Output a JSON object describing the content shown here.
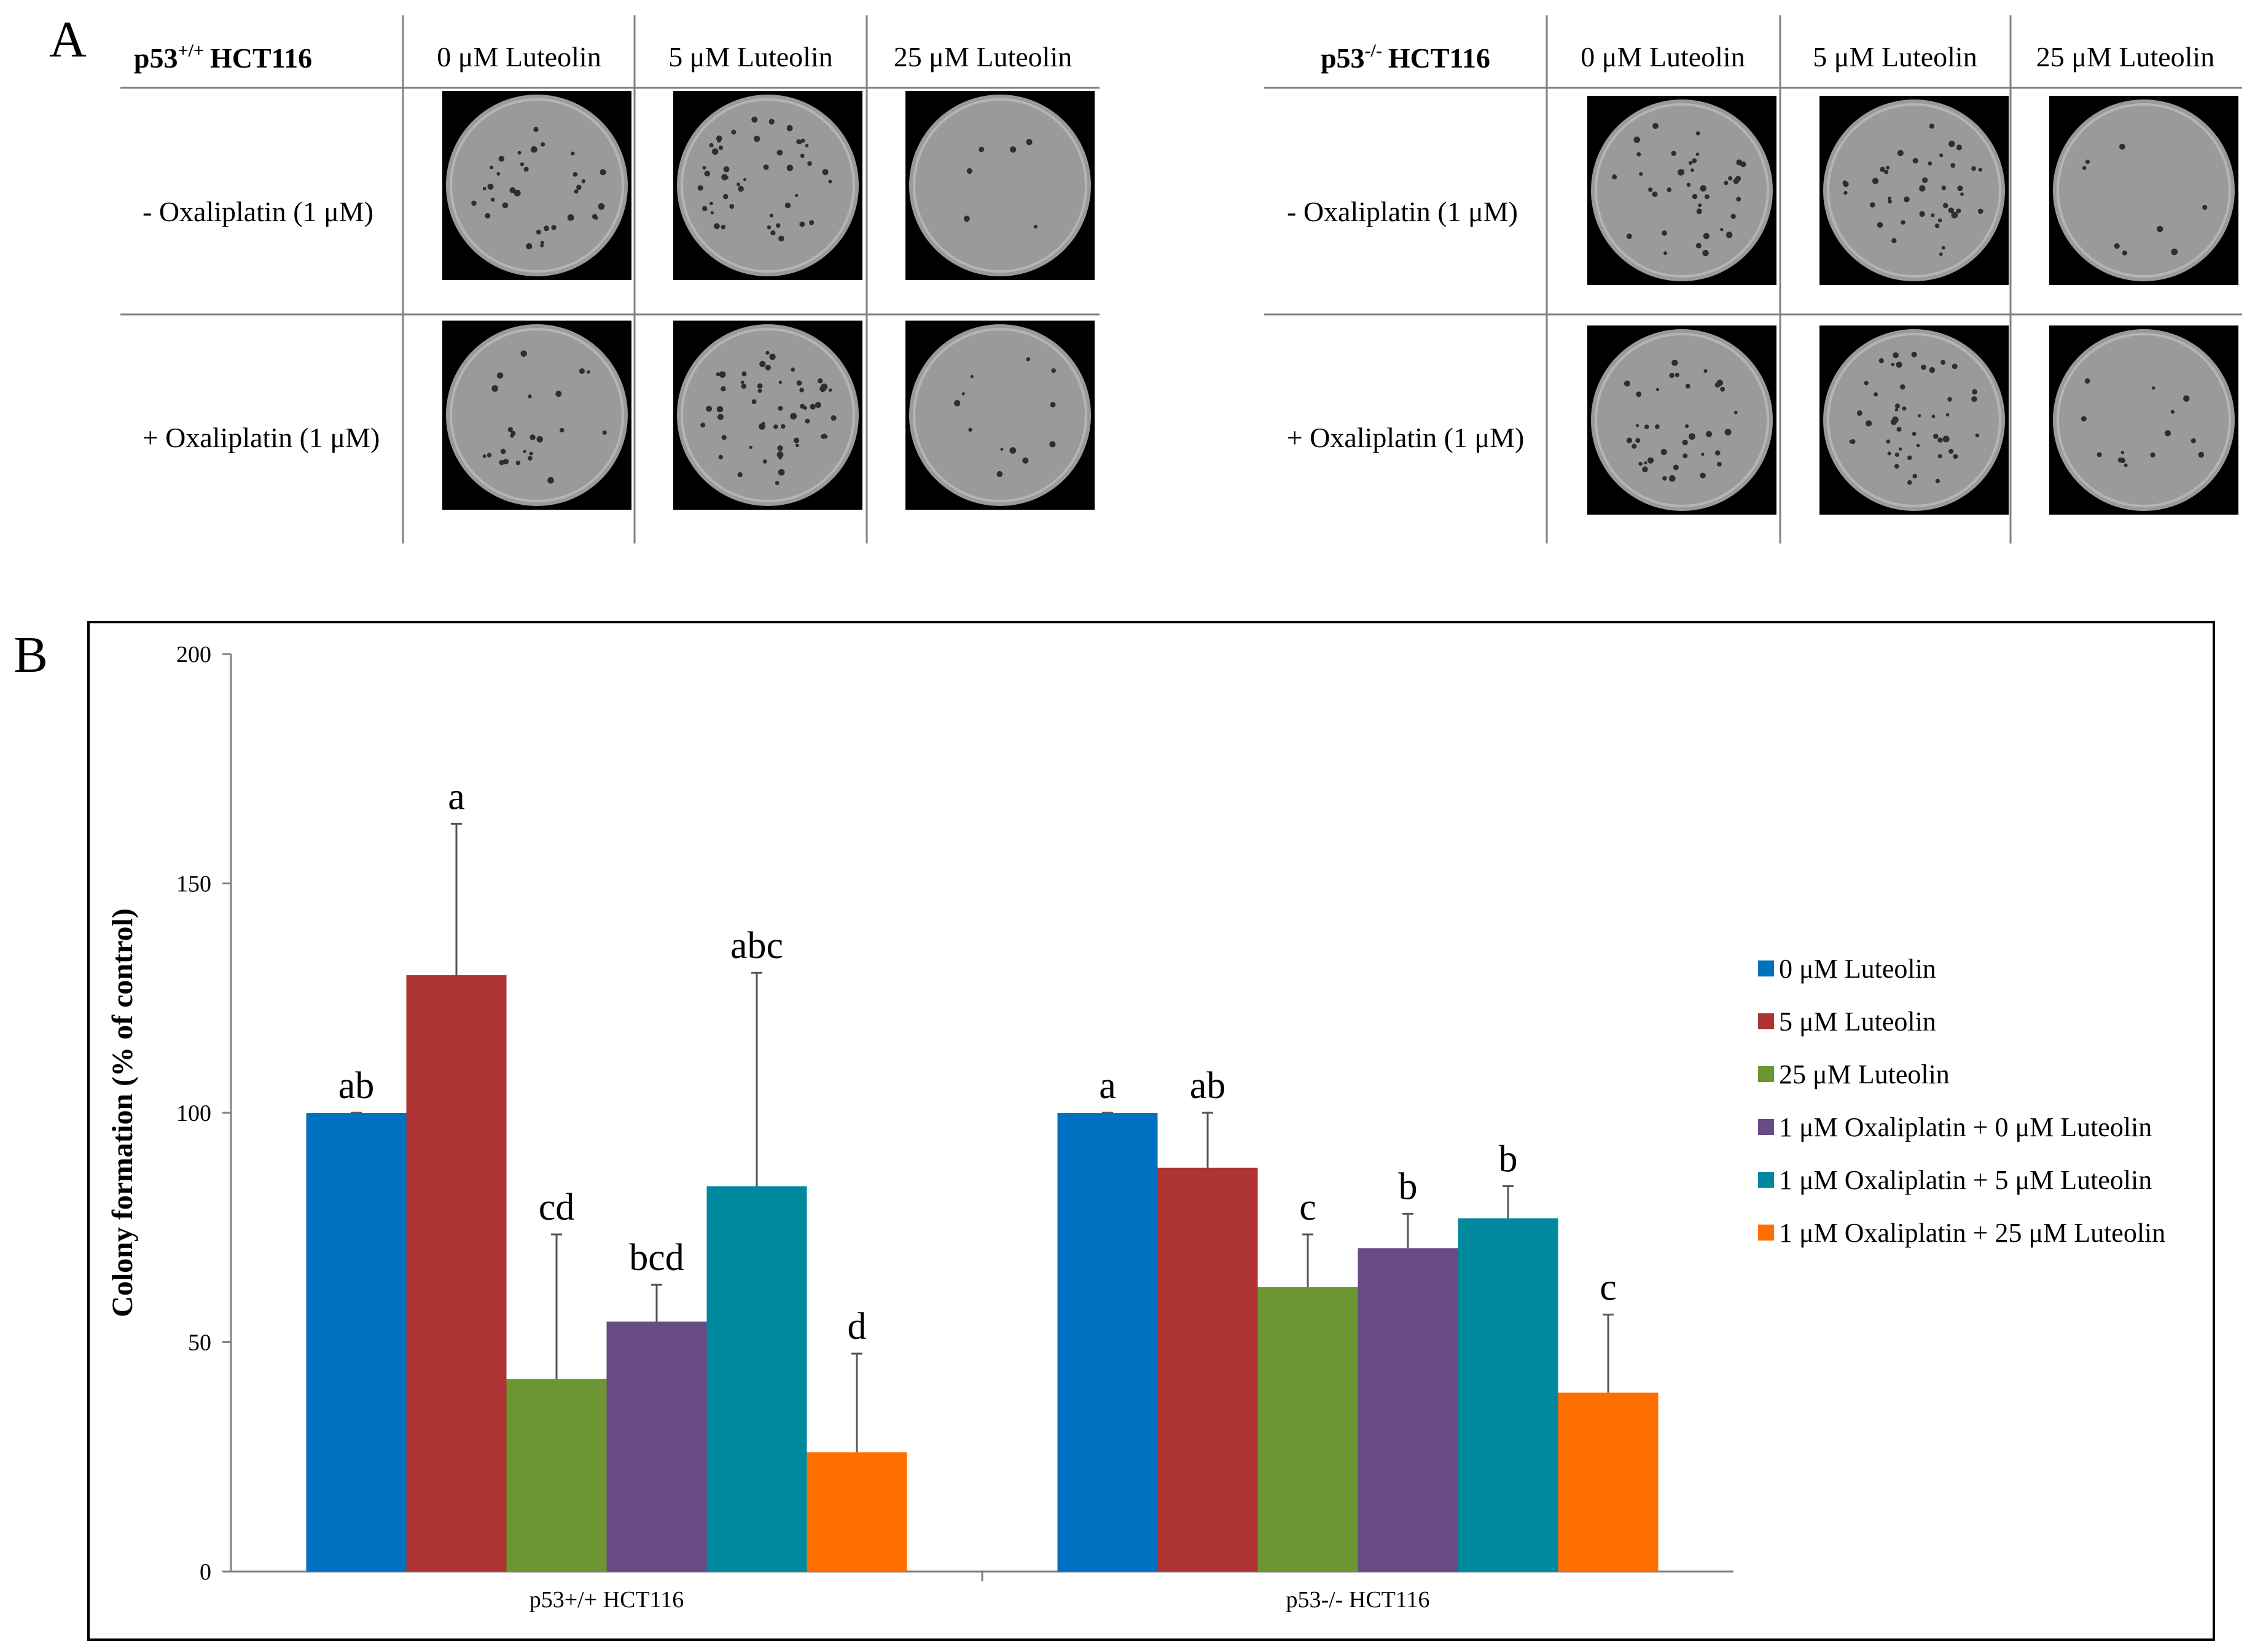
{
  "panel_a": {
    "label": "A",
    "groups": [
      {
        "title_prefix": "p53",
        "title_sup": "+/+",
        "title_suffix": "HCT116",
        "columns": [
          "0 μM Luteolin",
          "5 μM Luteolin",
          "25 μM Luteolin"
        ],
        "rows": [
          "- Oxaliplatin (1 μM)",
          "+ Oxaliplatin (1 μM)"
        ],
        "colony_counts": [
          [
            34,
            46,
            6
          ],
          [
            24,
            52,
            12
          ]
        ]
      },
      {
        "title_prefix": "p53",
        "title_sup": "-/-",
        "title_suffix": "HCT116",
        "columns": [
          "0 μM Luteolin",
          "5 μM Luteolin",
          "25 μM Luteolin"
        ],
        "rows": [
          "- Oxaliplatin (1 μM)",
          "+ Oxaliplatin (1 μM)"
        ],
        "colony_counts": [
          [
            38,
            40,
            8
          ],
          [
            36,
            46,
            14
          ]
        ]
      }
    ]
  },
  "chart_data": {
    "panel_label": "B",
    "type": "bar",
    "categories": [
      "p53+/+ HCT116",
      "p53-/- HCT116"
    ],
    "ylabel": "Colony formation (% of control)",
    "xlabel": "",
    "ylim": [
      0,
      200
    ],
    "yticks": [
      0,
      50,
      100,
      150,
      200
    ],
    "legend_position": "right",
    "grid": false,
    "series": [
      {
        "name": "0 μM Luteolin",
        "color": "#0070C0",
        "values": [
          100,
          100
        ],
        "errors": [
          0,
          0
        ],
        "letters": [
          "ab",
          "a"
        ]
      },
      {
        "name": "5 μM Luteolin",
        "color": "#AE3333",
        "values": [
          130,
          88
        ],
        "errors": [
          33,
          12
        ],
        "letters": [
          "a",
          "ab"
        ]
      },
      {
        "name": "25 μM Luteolin",
        "color": "#6C9631",
        "values": [
          42,
          62
        ],
        "errors": [
          31.5,
          11.5
        ],
        "letters": [
          "cd",
          "c"
        ]
      },
      {
        "name": "1 μM Oxaliplatin + 0 μM Luteolin",
        "color": "#684A85",
        "values": [
          54.5,
          70.5
        ],
        "errors": [
          8,
          7.5
        ],
        "letters": [
          "bcd",
          "b"
        ]
      },
      {
        "name": "1 μM Oxaliplatin + 5 μM Luteolin",
        "color": "#00889F",
        "values": [
          84,
          77
        ],
        "errors": [
          46.5,
          7
        ],
        "letters": [
          "abc",
          "b"
        ]
      },
      {
        "name": "1 μM Oxaliplatin + 25 μM Luteolin",
        "color": "#FF6F00",
        "values": [
          26,
          39
        ],
        "errors": [
          21.5,
          17
        ],
        "letters": [
          "d",
          "c"
        ]
      }
    ]
  }
}
